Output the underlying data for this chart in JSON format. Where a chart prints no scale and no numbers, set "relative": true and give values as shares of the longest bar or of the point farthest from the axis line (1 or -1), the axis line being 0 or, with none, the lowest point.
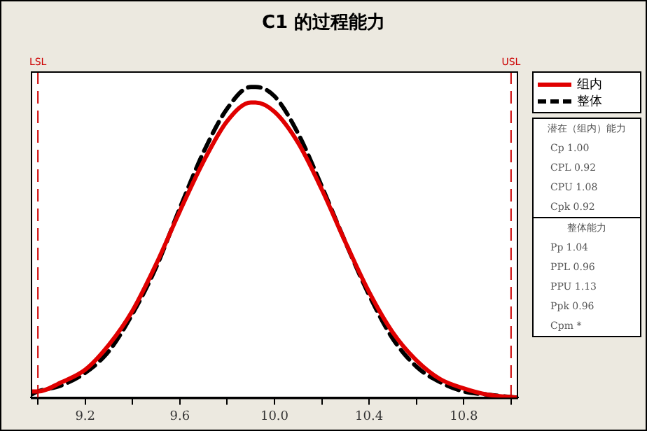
{
  "chart_data": {
    "type": "line",
    "title": "C1 的过程能力",
    "relative": true,
    "x": [
      8.97,
      9.0,
      9.1,
      9.2,
      9.3,
      9.4,
      9.5,
      9.6,
      9.7,
      9.8,
      9.9,
      9.92,
      10.0,
      10.1,
      10.2,
      10.3,
      10.4,
      10.5,
      10.6,
      10.7,
      10.8,
      10.9,
      11.03
    ],
    "series": [
      {
        "name": "组内",
        "color": "#e00000",
        "line_style": "solid",
        "values": [
          0.02,
          0.02,
          0.05,
          0.09,
          0.17,
          0.28,
          0.43,
          0.6,
          0.76,
          0.89,
          0.95,
          0.95,
          0.92,
          0.82,
          0.67,
          0.5,
          0.34,
          0.21,
          0.12,
          0.06,
          0.03,
          0.01,
          0.0
        ]
      },
      {
        "name": "整体",
        "color": "#000000",
        "line_style": "dashed",
        "values": [
          0.01,
          0.02,
          0.04,
          0.08,
          0.15,
          0.27,
          0.42,
          0.61,
          0.79,
          0.93,
          1.0,
          1.0,
          0.97,
          0.85,
          0.68,
          0.5,
          0.33,
          0.19,
          0.1,
          0.05,
          0.02,
          0.01,
          0.0
        ]
      }
    ],
    "xlim": [
      8.97,
      11.03
    ],
    "xticks": [
      {
        "value": 9.0,
        "label": null
      },
      9.2,
      {
        "value": 9.4,
        "label": null
      },
      9.6,
      {
        "value": 9.8,
        "label": null
      },
      {
        "value": 10.0,
        "label": "10.0"
      },
      {
        "value": 10.2,
        "label": null
      },
      10.4,
      {
        "value": 10.6,
        "label": null
      },
      10.8,
      {
        "value": 11.0,
        "label": null
      }
    ],
    "ref_lines": [
      {
        "axis": "x",
        "value": 9.0,
        "label": "LSL",
        "color": "#cc0000",
        "line_style": "dashed"
      },
      {
        "axis": "x",
        "value": 11.0,
        "label": "USL",
        "color": "#cc0000",
        "line_style": "dashed"
      }
    ],
    "annotations": [
      "潜在（组内）能力",
      "Cp 1.00",
      "CPL 0.92",
      "CPU 1.08",
      "Cpk 0.92",
      "整体能力",
      "Pp 1.04",
      "PPL 0.96",
      "PPU 1.13",
      "Ppk 0.96",
      "Cpm *"
    ],
    "legend": "right",
    "marker": "none",
    "grid": false,
    "tick_labels": "x"
  }
}
